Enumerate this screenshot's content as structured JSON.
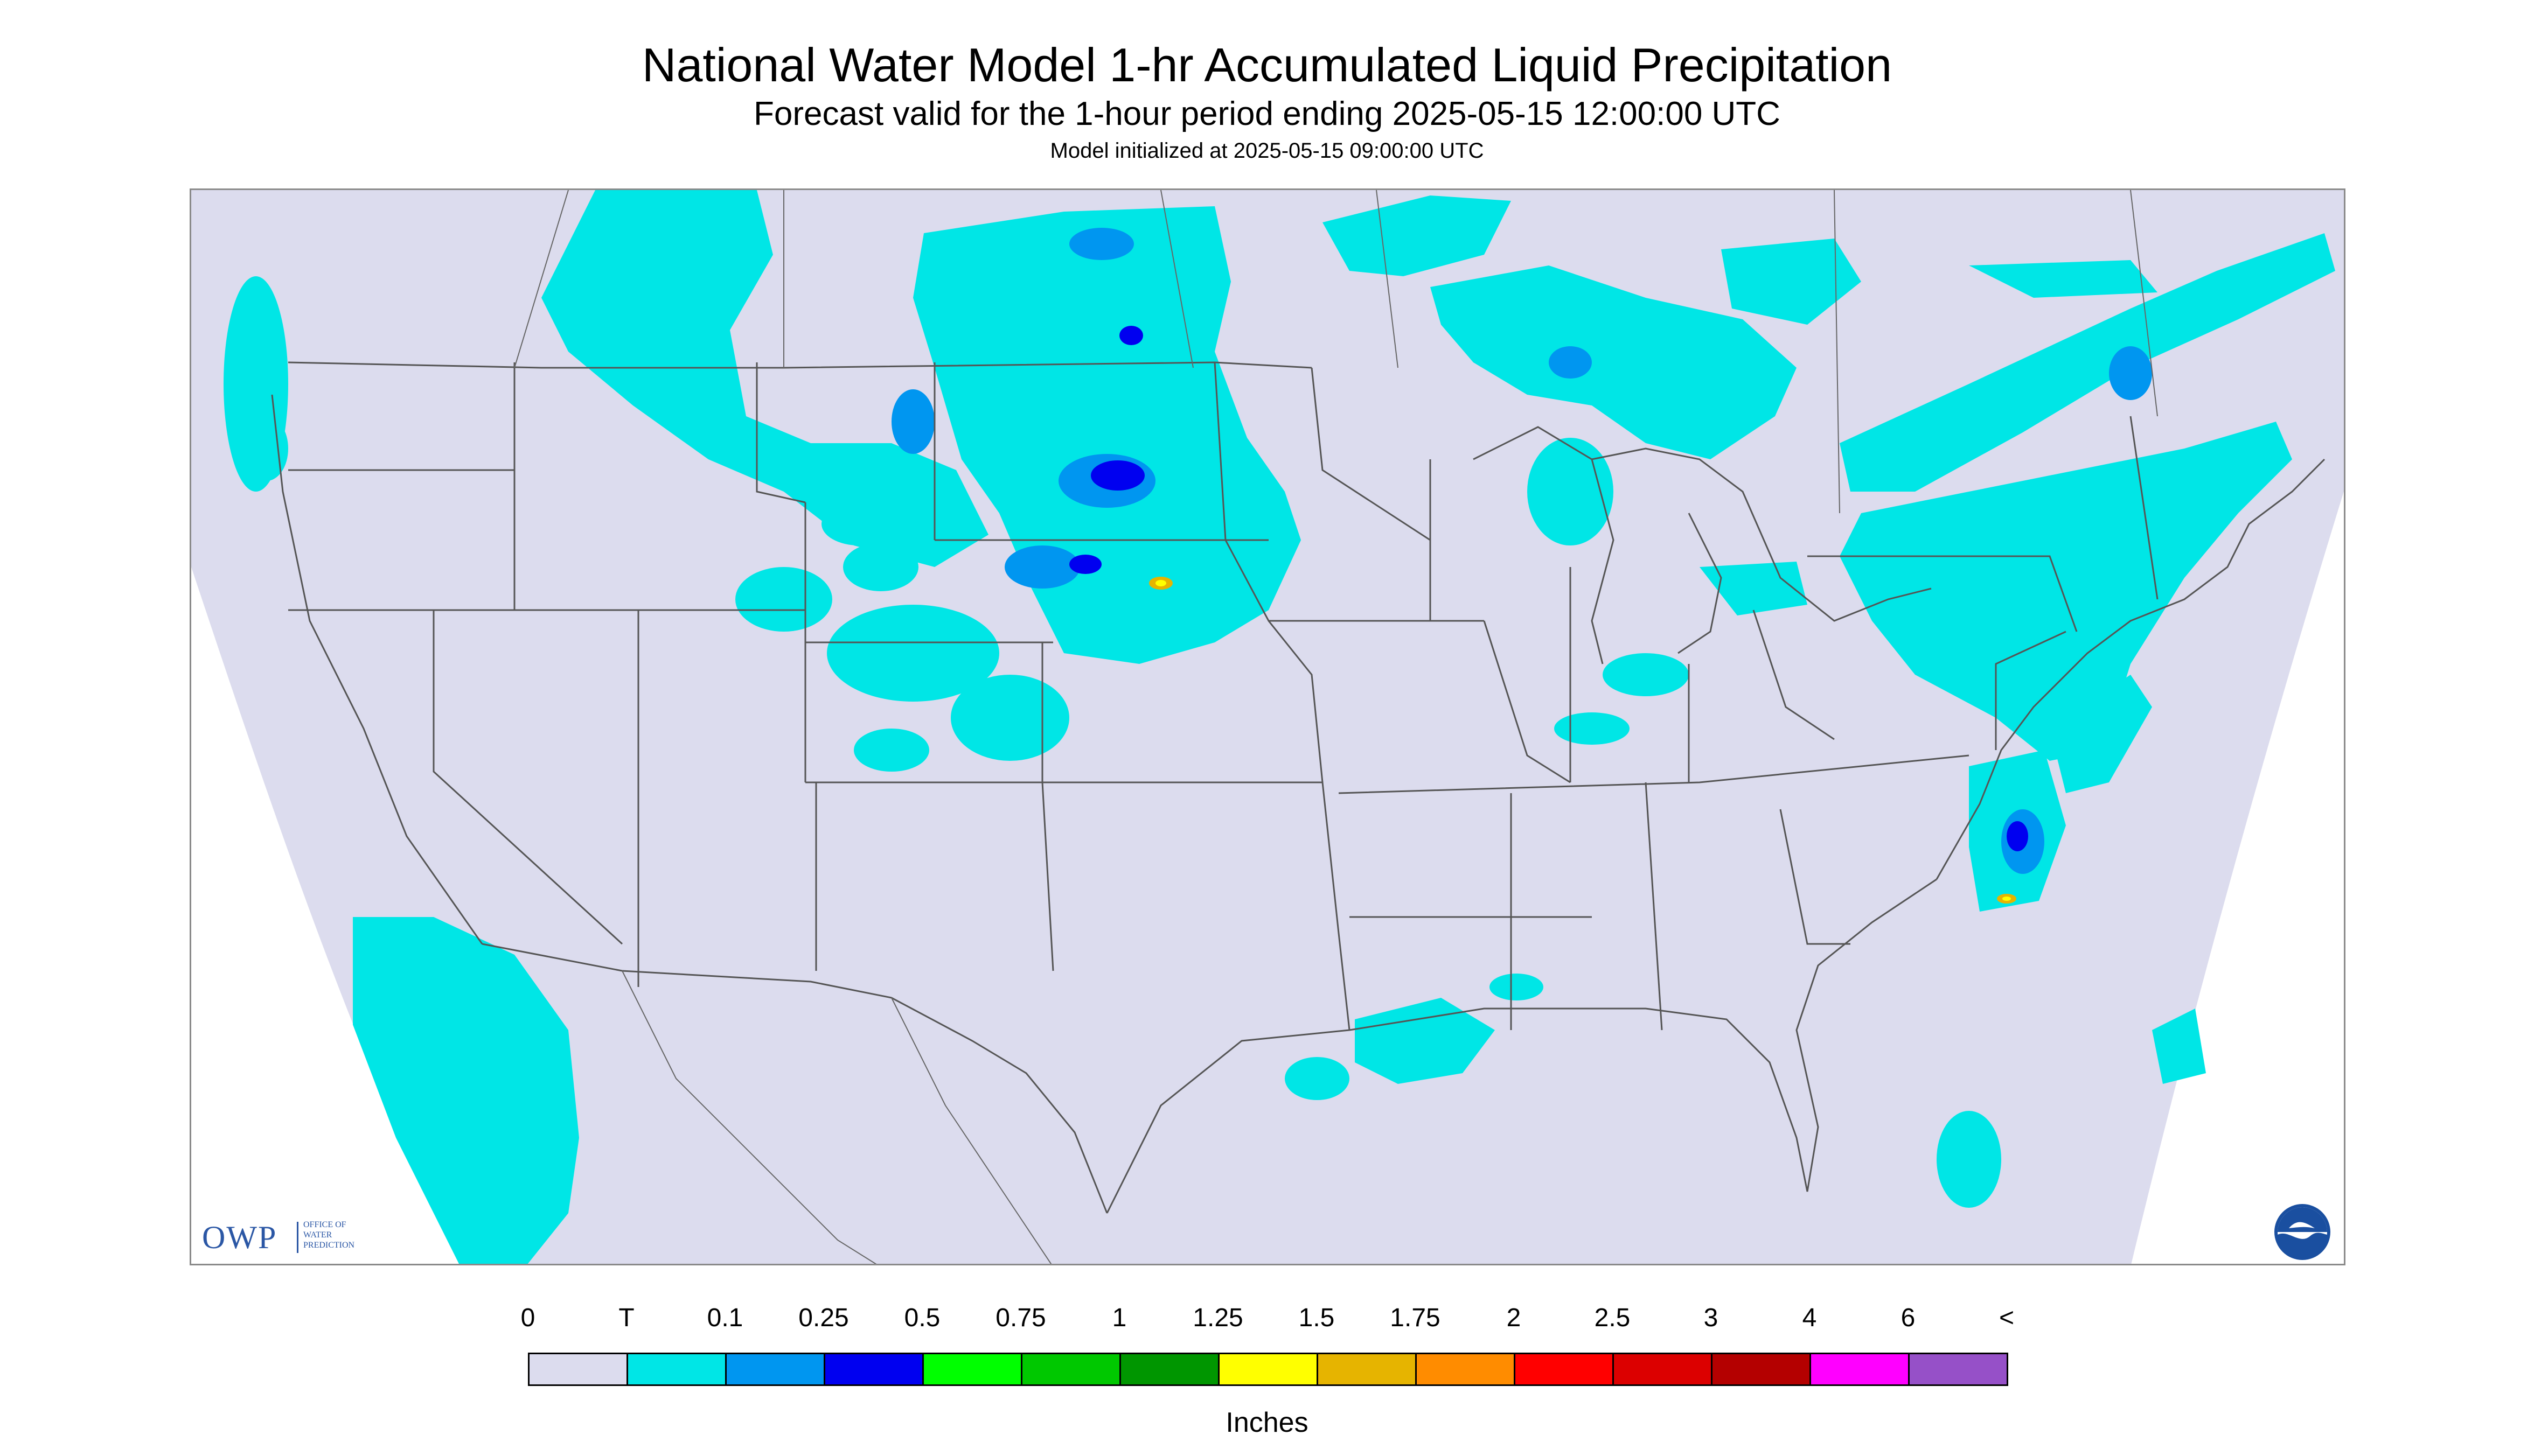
{
  "header": {
    "title": "National Water Model 1-hr Accumulated Liquid Precipitation",
    "subtitle": "Forecast valid for the 1-hour period ending 2025-05-15 12:00:00 UTC",
    "init": "Model initialized at 2025-05-15 09:00:00 UTC"
  },
  "map": {
    "background_color": "#dcdcee",
    "outside_color": "#ffffff",
    "boundary_color": "#555555",
    "precip_areas": [
      {
        "region": "Montana / Alberta",
        "level": "T"
      },
      {
        "region": "North Dakota / Saskatchewan / Manitoba",
        "level": "T"
      },
      {
        "region": "South Dakota / Nebraska",
        "level": "0.25"
      },
      {
        "region": "Wyoming / Colorado",
        "level": "T"
      },
      {
        "region": "Wisconsin / Michigan / Ontario",
        "level": "T"
      },
      {
        "region": "Northeast / Mid-Atlantic",
        "level": "0.1"
      },
      {
        "region": "North Carolina coast",
        "level": "1.25"
      },
      {
        "region": "Gulf Coast",
        "level": "T"
      },
      {
        "region": "Baja California / Pacific",
        "level": "T"
      }
    ]
  },
  "logos": {
    "owp_abbr": "OWP",
    "owp_full": "OFFICE OF\nWATER\nPREDICTION",
    "noaa_text": "NOAA"
  },
  "legend": {
    "ticks": [
      "0",
      "T",
      "0.1",
      "0.25",
      "0.5",
      "0.75",
      "1",
      "1.25",
      "1.5",
      "1.75",
      "2",
      "2.5",
      "3",
      "4",
      "6",
      "<"
    ],
    "colors": [
      "#dcdcee",
      "#00e6e6",
      "#0096f0",
      "#0000f0",
      "#00ff00",
      "#00c800",
      "#009600",
      "#ffff00",
      "#e6b400",
      "#ff8c00",
      "#ff0000",
      "#dc0000",
      "#b40000",
      "#ff00ff",
      "#9650c8"
    ],
    "units": "Inches"
  }
}
